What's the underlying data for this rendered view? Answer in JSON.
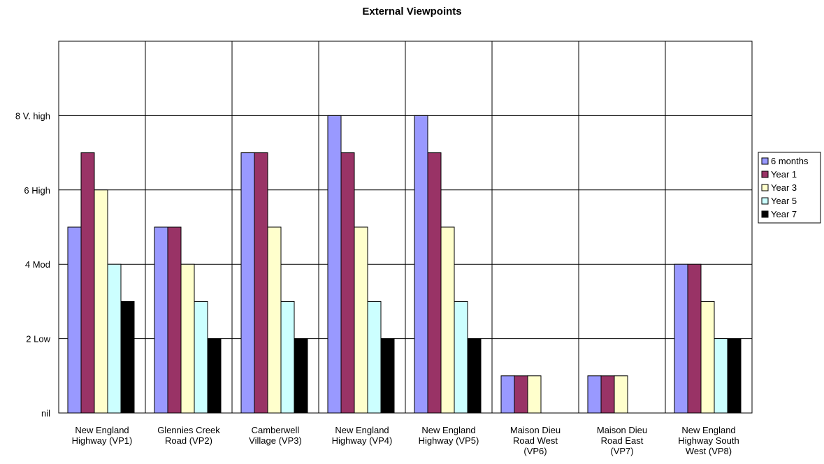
{
  "chart_data": {
    "type": "bar",
    "title": "External Viewpoints",
    "xlabel": "",
    "ylabel": "",
    "ylim": [
      0,
      10
    ],
    "yticks": [
      {
        "value": 0,
        "label": "nil"
      },
      {
        "value": 2,
        "label": "2 Low"
      },
      {
        "value": 4,
        "label": "4 Mod"
      },
      {
        "value": 6,
        "label": "6 High"
      },
      {
        "value": 8,
        "label": "8 V. high"
      }
    ],
    "gridlines": [
      2,
      4,
      6,
      8
    ],
    "grid": true,
    "legend_position": "right",
    "categories": [
      [
        "New England",
        "Highway (VP1)"
      ],
      [
        "Glennies Creek",
        "Road (VP2)"
      ],
      [
        "Camberwell",
        "Village (VP3)"
      ],
      [
        "New England",
        "Highway (VP4)"
      ],
      [
        "New England",
        "Highway (VP5)"
      ],
      [
        "Maison Dieu",
        "Road West",
        "(VP6)"
      ],
      [
        "Maison Dieu",
        "Road East",
        "(VP7)"
      ],
      [
        "New England",
        "Highway South",
        "West (VP8)"
      ]
    ],
    "series": [
      {
        "name": "6 months",
        "color": "#9999ff",
        "values": [
          5,
          5,
          7,
          8,
          8,
          1,
          1,
          4
        ]
      },
      {
        "name": "Year 1",
        "color": "#993366",
        "values": [
          7,
          5,
          7,
          7,
          7,
          1,
          1,
          4
        ]
      },
      {
        "name": "Year 3",
        "color": "#ffffcc",
        "values": [
          6,
          4,
          5,
          5,
          5,
          1,
          1,
          3
        ]
      },
      {
        "name": "Year 5",
        "color": "#ccffff",
        "values": [
          4,
          3,
          3,
          3,
          3,
          0,
          0,
          2
        ]
      },
      {
        "name": "Year 7",
        "color": "#000000",
        "values": [
          3,
          2,
          2,
          2,
          2,
          0,
          0,
          2
        ]
      }
    ]
  }
}
